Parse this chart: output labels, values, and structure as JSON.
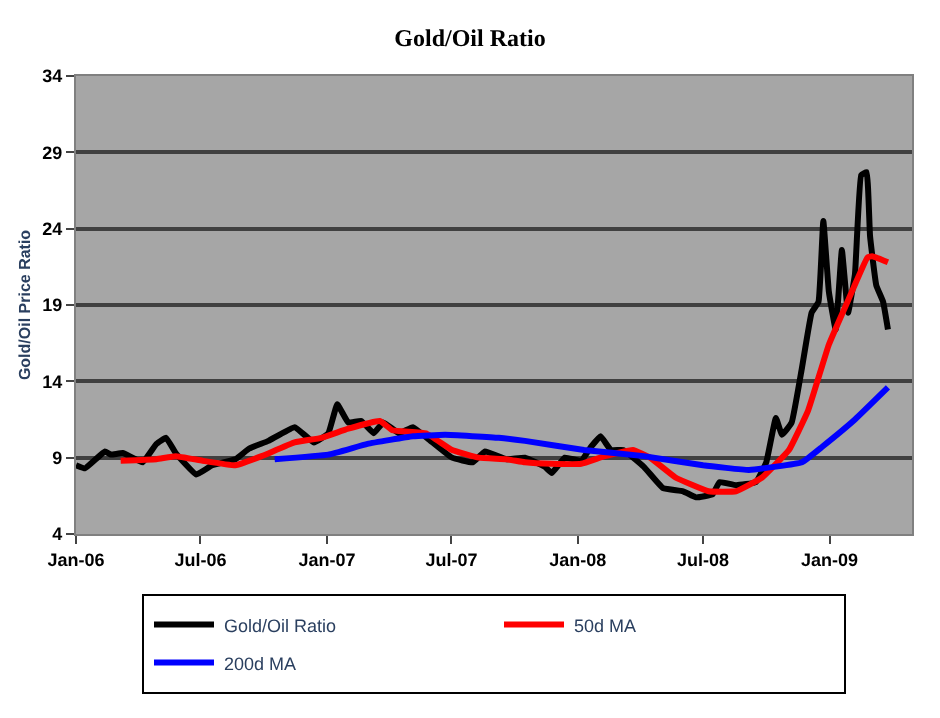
{
  "chart_data": {
    "type": "line",
    "title": "Gold/Oil Ratio",
    "ylabel": "Gold/Oil Price Ratio",
    "xlim": [
      "2006-01-01",
      "2009-05-01"
    ],
    "xticks": [
      {
        "value": "2006-01-01",
        "label": "Jan-06"
      },
      {
        "value": "2006-07-01",
        "label": "Jul-06"
      },
      {
        "value": "2007-01-01",
        "label": "Jan-07"
      },
      {
        "value": "2007-07-01",
        "label": "Jul-07"
      },
      {
        "value": "2008-01-01",
        "label": "Jan-08"
      },
      {
        "value": "2008-07-01",
        "label": "Jul-08"
      },
      {
        "value": "2009-01-01",
        "label": "Jan-09"
      }
    ],
    "ylim": [
      4,
      34
    ],
    "yticks": [
      4,
      9,
      14,
      19,
      24,
      29,
      34
    ],
    "grid": "y",
    "legend": "bottom",
    "marker": "none",
    "line_style": "solid",
    "series": [
      {
        "name": "Gold/Oil Ratio",
        "color": "#000000",
        "x": [
          "2006-01-01",
          "2006-01-14",
          "2006-02-12",
          "2006-02-21",
          "2006-03-10",
          "2006-04-08",
          "2006-04-28",
          "2006-05-12",
          "2006-05-26",
          "2006-06-25",
          "2006-07-18",
          "2006-08-21",
          "2006-09-10",
          "2006-10-08",
          "2006-11-15",
          "2006-12-13",
          "2007-01-03",
          "2007-01-16",
          "2007-02-01",
          "2007-02-20",
          "2007-03-10",
          "2007-03-24",
          "2007-04-16",
          "2007-05-06",
          "2007-05-29",
          "2007-07-02",
          "2007-08-01",
          "2007-08-19",
          "2007-09-19",
          "2007-10-16",
          "2007-11-14",
          "2007-11-24",
          "2007-12-13",
          "2008-01-06",
          "2008-01-20",
          "2008-02-03",
          "2008-02-18",
          "2008-03-07",
          "2008-04-06",
          "2008-05-04",
          "2008-06-02",
          "2008-06-21",
          "2008-07-15",
          "2008-07-25",
          "2008-08-18",
          "2008-09-16",
          "2008-10-01",
          "2008-10-15",
          "2008-10-24",
          "2008-11-07",
          "2008-11-22",
          "2008-12-06",
          "2008-12-16",
          "2008-12-23",
          "2008-12-31",
          "2009-01-10",
          "2009-01-19",
          "2009-01-28",
          "2009-02-07",
          "2009-02-16",
          "2009-02-24",
          "2009-03-01",
          "2009-03-10",
          "2009-03-20",
          "2009-03-27"
        ],
        "values": [
          8.5,
          8.3,
          9.4,
          9.2,
          9.3,
          8.7,
          9.9,
          10.3,
          9.3,
          7.9,
          8.5,
          8.9,
          9.6,
          10.1,
          11.0,
          10.0,
          10.6,
          12.5,
          11.3,
          11.4,
          10.6,
          11.3,
          10.6,
          11.0,
          10.2,
          9.0,
          8.7,
          9.4,
          8.9,
          9.0,
          8.4,
          8.0,
          9.0,
          8.8,
          9.7,
          10.4,
          9.5,
          9.5,
          8.4,
          7.0,
          6.8,
          6.4,
          6.6,
          7.4,
          7.2,
          7.4,
          8.7,
          11.6,
          10.5,
          11.3,
          14.9,
          18.5,
          19.2,
          24.5,
          19.9,
          17.4,
          22.6,
          18.5,
          21.0,
          27.5,
          27.7,
          23.5,
          20.3,
          19.2,
          17.4
        ]
      },
      {
        "name": "50d MA",
        "color": "#ff0000",
        "x": [
          "2006-03-07",
          "2006-04-28",
          "2006-05-26",
          "2006-07-04",
          "2006-08-21",
          "2006-09-28",
          "2006-11-15",
          "2006-12-24",
          "2007-02-01",
          "2007-03-19",
          "2007-04-06",
          "2007-05-25",
          "2007-07-02",
          "2007-08-10",
          "2007-09-19",
          "2007-10-16",
          "2007-11-24",
          "2008-01-06",
          "2008-02-09",
          "2008-03-21",
          "2008-04-15",
          "2008-05-22",
          "2008-07-09",
          "2008-08-18",
          "2008-09-25",
          "2008-11-03",
          "2008-12-01",
          "2008-12-31",
          "2009-01-28",
          "2009-02-25",
          "2009-03-04",
          "2009-03-27"
        ],
        "values": [
          8.8,
          8.9,
          9.1,
          8.8,
          8.5,
          9.1,
          10.0,
          10.3,
          10.9,
          11.4,
          10.8,
          10.6,
          9.5,
          9.0,
          8.9,
          8.7,
          8.6,
          8.6,
          9.1,
          9.5,
          9.0,
          7.7,
          6.8,
          6.8,
          7.7,
          9.5,
          12.1,
          16.4,
          19.3,
          22.1,
          22.2,
          21.8
        ]
      },
      {
        "name": "200d MA",
        "color": "#0000ff",
        "x": [
          "2006-10-17",
          "2007-01-03",
          "2007-03-01",
          "2007-05-06",
          "2007-06-22",
          "2007-09-08",
          "2007-10-16",
          "2008-01-10",
          "2008-04-06",
          "2008-07-01",
          "2008-09-06",
          "2008-11-22",
          "2008-12-21",
          "2009-02-07",
          "2009-03-27"
        ],
        "values": [
          8.9,
          9.2,
          9.9,
          10.4,
          10.5,
          10.3,
          10.1,
          9.5,
          9.1,
          8.5,
          8.2,
          8.7,
          9.7,
          11.5,
          13.6
        ]
      }
    ]
  }
}
